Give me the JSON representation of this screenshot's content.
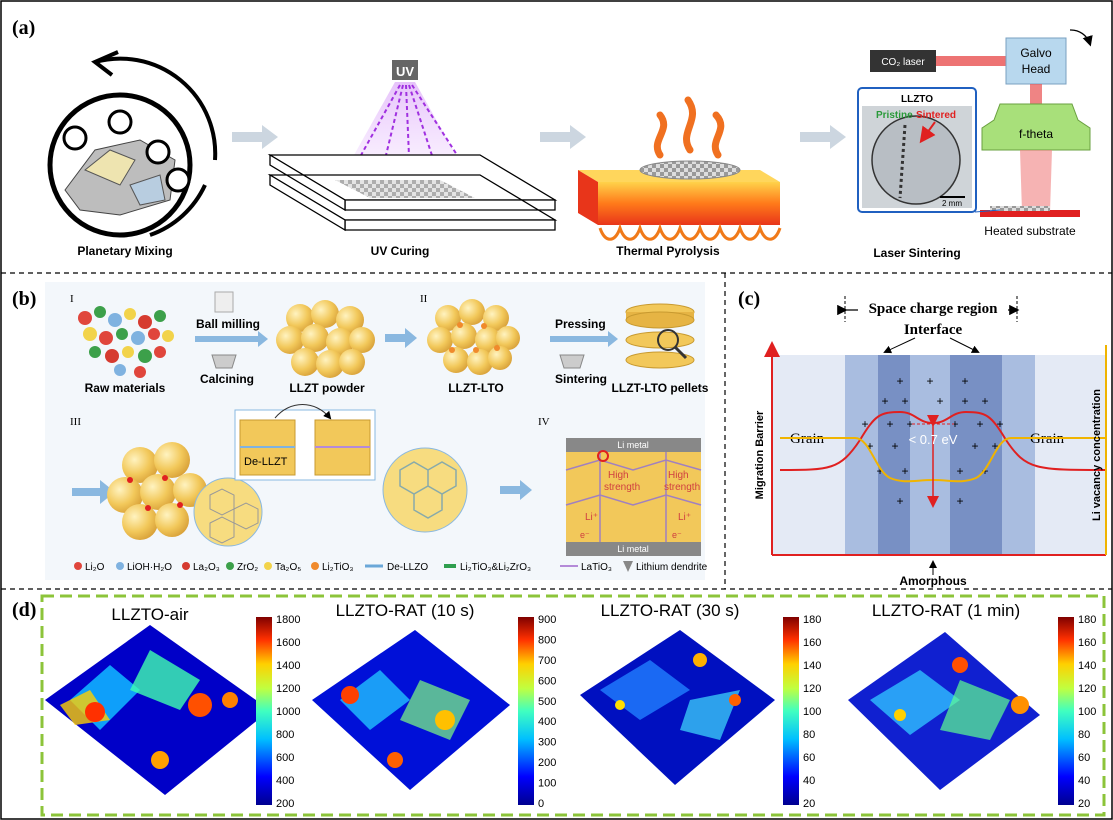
{
  "panels": {
    "a": {
      "label": "(a)",
      "steps": [
        "Planetary Mixing",
        "UV Curing",
        "Thermal Pyrolysis",
        "Laser Sintering"
      ],
      "uv_text": "UV",
      "laser": {
        "co2": "CO₂ laser",
        "galvo_line1": "Galvo",
        "galvo_line2": "Head",
        "ftheta": "f-theta",
        "substrate": "Heated substrate",
        "inset_title": "LLZTO",
        "pristine": "Pristine",
        "sintered": "Sintered",
        "scale": "2 mm"
      }
    },
    "b": {
      "label": "(b)",
      "roman": [
        "I",
        "II",
        "III",
        "IV"
      ],
      "raw_materials": "Raw materials",
      "ball_milling": "Ball milling",
      "calcining": "Calcining",
      "llzt_powder": "LLZT powder",
      "llzt_lto": "LLZT-LTO",
      "pressing": "Pressing",
      "sintering": "Sintering",
      "pellets": "LLZT-LTO pellets",
      "de_llzt": "De-LLZT",
      "li_metal": "Li metal",
      "high_strength_1": "High",
      "high_strength_2": "strength",
      "li_plus": "Li⁺",
      "e_minus": "e⁻",
      "legend": [
        "Li₂O",
        "LiOH·H₂O",
        "La₂O₃",
        "ZrO₂",
        "Ta₂O₅",
        "Li₂TiO₃",
        "De-LLZO",
        "Li₂TiO₃&Li₂ZrO₃",
        "LaTiO₃",
        "Lithium  dendrite"
      ],
      "legend_colors": [
        "#e0463c",
        "#7fb2e0",
        "#d63b30",
        "#3ca04a",
        "#f2d34a",
        "#f08a2c",
        "#6aa7d8",
        "#2e9e4e",
        "#b48ad8",
        "#888888"
      ]
    },
    "c": {
      "label": "(c)",
      "space_charge": "Space charge region",
      "interface": "Interface",
      "grain_left": "Grain",
      "grain_right": "Grain",
      "energy": "< 0.7 eV",
      "amorphous": "Amorphous",
      "y_left": "Migration Barrier",
      "y_right": "Li vacancy concentration"
    },
    "d": {
      "label": "(d)",
      "plots": [
        {
          "title": "LLZTO-air",
          "ticks": [
            "1800",
            "1600",
            "1400",
            "1200",
            "1000",
            "800",
            "600",
            "400",
            "200"
          ]
        },
        {
          "title": "LLZTO-RAT (10 s)",
          "ticks": [
            "900",
            "800",
            "700",
            "600",
            "500",
            "400",
            "300",
            "200",
            "100",
            "0"
          ]
        },
        {
          "title": "LLZTO-RAT (30 s)",
          "ticks": [
            "180",
            "160",
            "140",
            "120",
            "100",
            "80",
            "60",
            "40",
            "20"
          ]
        },
        {
          "title": "LLZTO-RAT (1 min)",
          "ticks": [
            "180",
            "160",
            "140",
            "120",
            "100",
            "80",
            "60",
            "40",
            "20"
          ]
        }
      ]
    }
  }
}
